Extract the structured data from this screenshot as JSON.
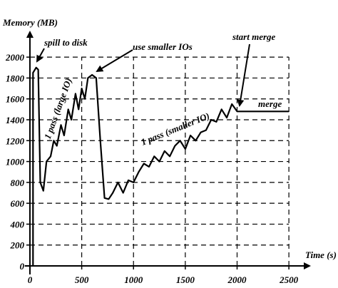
{
  "chart_data": {
    "type": "line",
    "xlabel": "Time (s)",
    "ylabel": "Memory (MB)",
    "x": [
      30,
      30,
      60,
      80,
      100,
      130,
      160,
      200,
      230,
      260,
      300,
      330,
      370,
      400,
      440,
      470,
      500,
      530,
      560,
      600,
      640,
      680,
      720,
      760,
      800,
      850,
      900,
      950,
      1000,
      1050,
      1100,
      1150,
      1200,
      1250,
      1300,
      1350,
      1400,
      1450,
      1500,
      1550,
      1600,
      1650,
      1700,
      1750,
      1800,
      1850,
      1900,
      1950,
      2000,
      2050,
      2500
    ],
    "series": [
      {
        "color": "#000000",
        "values": [
          0,
          1850,
          1900,
          1880,
          800,
          720,
          1000,
          1050,
          1200,
          1150,
          1350,
          1250,
          1500,
          1400,
          1650,
          1500,
          1700,
          1600,
          1800,
          1830,
          1800,
          1200,
          650,
          640,
          700,
          800,
          700,
          820,
          800,
          900,
          980,
          950,
          1050,
          1000,
          1100,
          1050,
          1150,
          1200,
          1120,
          1250,
          1200,
          1280,
          1300,
          1400,
          1380,
          1500,
          1420,
          1550,
          1480,
          1480,
          1480
        ]
      }
    ],
    "xlim": [
      -50,
      2630
    ],
    "ylim": [
      0,
      2240
    ],
    "xticks": [
      0,
      500,
      1000,
      1500,
      2000,
      2500
    ],
    "yticks": [
      0,
      200,
      400,
      600,
      800,
      1000,
      1200,
      1400,
      1600,
      1800,
      2000
    ],
    "grid": true,
    "annotations": [
      "spill to disk",
      "use smaller IOs",
      "start merge",
      "merge",
      "1 pass (large IO)",
      "1 pass (smaller IO)"
    ]
  }
}
